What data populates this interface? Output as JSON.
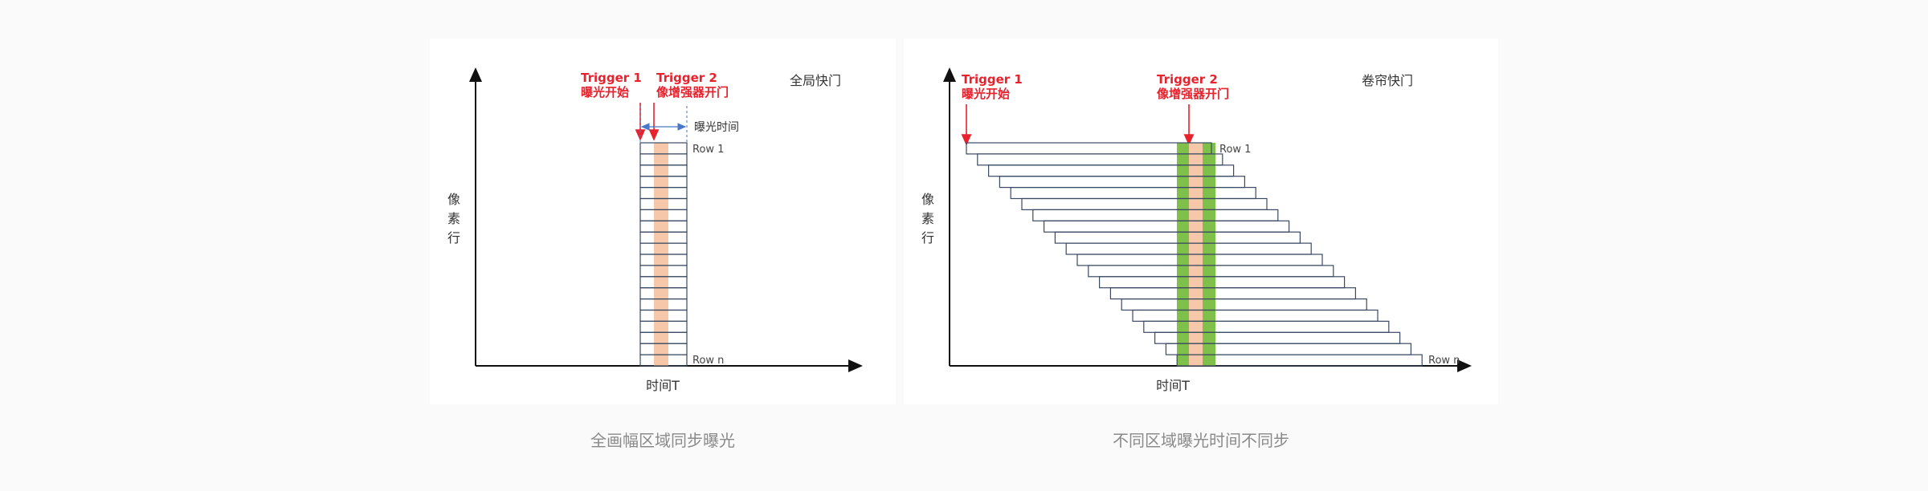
{
  "colors": {
    "trigger": "#e8222d",
    "row_border": "#3b4a63",
    "axis": "#111111",
    "gate_stripe": "#f6c7a8",
    "gate_fill": "#7fc04a",
    "arrow_blue": "#4a78c8",
    "caption": "#8a8a8a"
  },
  "left": {
    "shutter_label": "全局快门",
    "trigger1_title": "Trigger  1",
    "trigger1_sub": "曝光开始",
    "trigger2_title": "Trigger  2",
    "trigger2_sub": "像增强器开门",
    "exposure_label": "曝光时间",
    "row_first": "Row 1",
    "row_last": "Row n",
    "y_label": [
      "像",
      "素",
      "行"
    ],
    "x_label": "时间T",
    "row_count": 20,
    "caption": "全画幅区域同步曝光"
  },
  "right": {
    "shutter_label": "卷帘快门",
    "trigger1_title": "Trigger  1",
    "trigger1_sub": "曝光开始",
    "trigger2_title": "Trigger 2",
    "trigger2_sub": "像增强器开门",
    "row_first": "Row 1",
    "row_last": "Row n",
    "y_label": [
      "像",
      "素",
      "行"
    ],
    "x_label": "时间T",
    "row_count": 20,
    "caption": "不同区域曝光时间不同步"
  }
}
